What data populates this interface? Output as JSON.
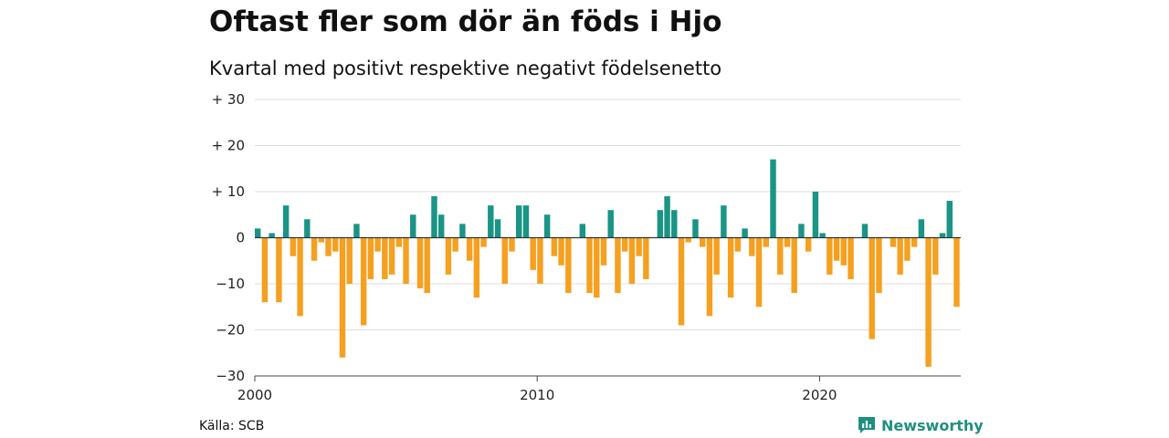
{
  "title": "Oftast fler som dör än föds i Hjo",
  "subtitle": "Kvartal med positivt respektive negativt födelsenetto",
  "source": "Källa: SCB",
  "brand": {
    "name": "Newsworthy",
    "icon": "newsworthy-logo-icon"
  },
  "colors": {
    "positive": "#1a9485",
    "negative": "#f5a020",
    "grid": "#dddddd",
    "zero": "#333333"
  },
  "chart_data": {
    "type": "bar",
    "title": "Oftast fler som dör än föds i Hjo",
    "subtitle": "Kvartal med positivt respektive negativt födelsenetto",
    "xlabel": "",
    "ylabel": "",
    "ylim": [
      -30,
      30
    ],
    "yticks": [
      30,
      20,
      10,
      0,
      -10,
      -20,
      -30
    ],
    "ytick_labels": [
      "+ 30",
      "+ 20",
      "+ 10",
      "0",
      "−10",
      "−20",
      "−30"
    ],
    "xtick_labels": [
      "2000",
      "2010",
      "2020"
    ],
    "start": "2000 Q1",
    "frequency": "quarterly",
    "grid": true,
    "values": [
      2,
      -14,
      1,
      -14,
      7,
      -4,
      -17,
      4,
      -5,
      -1,
      -4,
      -3,
      -26,
      -10,
      3,
      -19,
      -9,
      -3,
      -9,
      -8,
      -2,
      -10,
      5,
      -11,
      -12,
      9,
      5,
      -8,
      -3,
      3,
      -5,
      -13,
      -2,
      7,
      4,
      -10,
      -3,
      7,
      7,
      -7,
      -10,
      5,
      -4,
      -6,
      -12,
      0,
      3,
      -12,
      -13,
      -6,
      6,
      -12,
      -3,
      -10,
      -4,
      -9,
      0,
      6,
      9,
      6,
      -19,
      -1,
      4,
      -2,
      -17,
      -8,
      7,
      -13,
      -3,
      2,
      -4,
      -15,
      -2,
      17,
      -8,
      -2,
      -12,
      3,
      -3,
      10,
      1,
      -8,
      -5,
      -6,
      -9,
      0,
      3,
      -22,
      -12,
      0,
      -2,
      -8,
      -5,
      -2,
      4,
      -28,
      -8,
      1,
      8,
      -15
    ]
  }
}
